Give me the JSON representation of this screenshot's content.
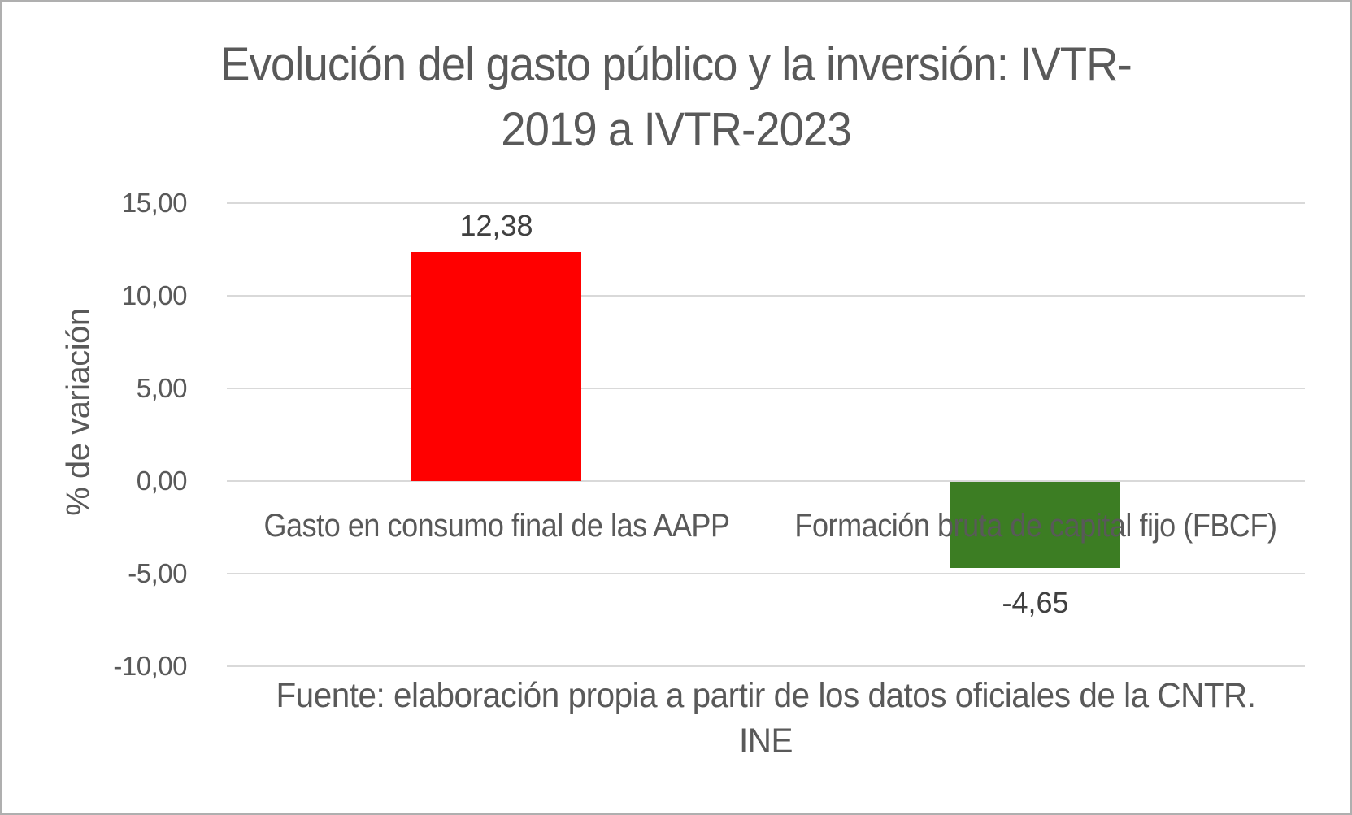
{
  "figure": {
    "title_lines": [
      "Evolución del gasto público y la inversión: IVTR-",
      "2019 a IVTR-2023"
    ],
    "footer_lines": [
      "Fuente: elaboración propia a partir de los datos oficiales de la CNTR.",
      "INE"
    ]
  },
  "chart_data": {
    "type": "bar",
    "title": "Evolución del gasto público y la inversión: IVTR-2019 a IVTR-2023",
    "categories": [
      "Gasto en consumo final de las AAPP",
      "Formación bruta de capital fijo (FBCF)"
    ],
    "values": [
      12.38,
      -4.65
    ],
    "value_labels": [
      "12,38",
      "-4,65"
    ],
    "bar_colors": [
      "#FF0000",
      "#3C7D23"
    ],
    "xlabel": "",
    "ylabel": "% de variación",
    "ylim": [
      -10,
      15
    ],
    "ytick_interval": 5,
    "yticks": [
      {
        "value": 15,
        "label": "15,00"
      },
      {
        "value": 10,
        "label": "10,00"
      },
      {
        "value": 5,
        "label": "5,00"
      },
      {
        "value": 0,
        "label": "0,00"
      },
      {
        "value": -5,
        "label": "-5,00"
      },
      {
        "value": -10,
        "label": "-10,00"
      }
    ],
    "grid": true,
    "legend": "none",
    "source_note": "Fuente: elaboración propia a partir de los datos oficiales de la CNTR. INE"
  },
  "colors": {
    "text": "#595959",
    "value_label_text": "#404040",
    "gridline": "#D9D9D9",
    "background": "#FFFFFF",
    "border": "#AFAFAF"
  }
}
